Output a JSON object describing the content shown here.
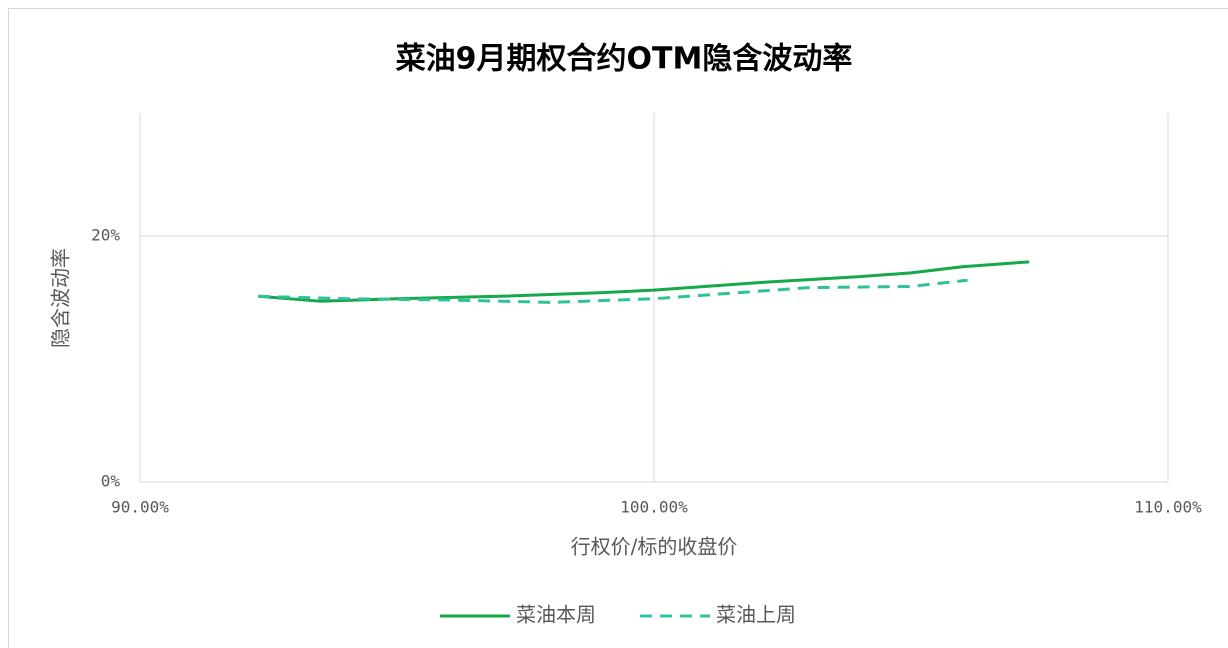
{
  "chart_data": {
    "type": "line",
    "title": "菜油9月期权合约OTM隐含波动率",
    "x_label": "行权价/标的收盘价",
    "y_label": "隐含波动率",
    "series": [
      {
        "name": "菜油本周",
        "color": "#16a84a",
        "dash": false,
        "x": [
          92.3,
          93.5,
          95,
          97,
          99,
          100,
          102,
          104,
          105,
          106,
          107.3
        ],
        "values": [
          15.1,
          14.7,
          14.9,
          15.1,
          15.4,
          15.6,
          16.2,
          16.7,
          17.0,
          17.5,
          17.9
        ]
      },
      {
        "name": "菜油上周",
        "color": "#2fc29a",
        "dash": true,
        "x": [
          92.3,
          94,
          96,
          98,
          100,
          102,
          103,
          105,
          106.1
        ],
        "values": [
          15.1,
          14.9,
          14.8,
          14.6,
          14.9,
          15.5,
          15.8,
          15.9,
          16.4
        ]
      }
    ],
    "xlim": [
      90,
      110
    ],
    "xticks": [
      {
        "value": 90,
        "label": "90.00%"
      },
      {
        "value": 100,
        "label": "100.00%"
      },
      {
        "value": 110,
        "label": "110.00%"
      }
    ],
    "ylim": [
      0,
      30
    ],
    "yticks": [
      {
        "value": 0,
        "label": "0%"
      },
      {
        "value": 20,
        "label": "20%"
      }
    ],
    "grid": true,
    "legend": "bottom"
  }
}
